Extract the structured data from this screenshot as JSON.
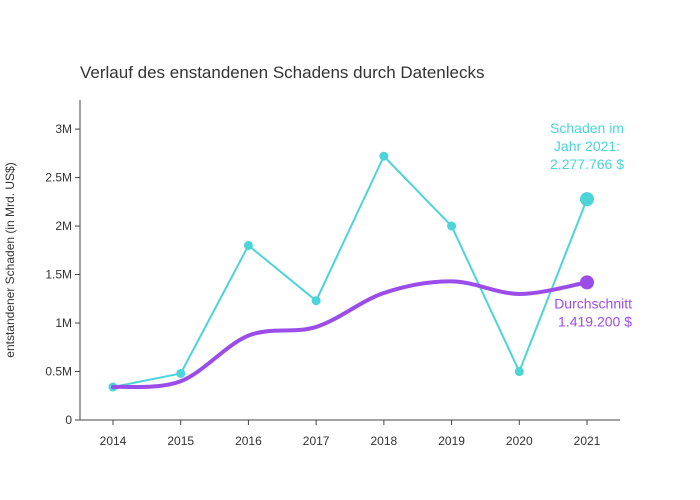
{
  "chart_data": {
    "type": "line",
    "title": "Verlauf des enstandenen Schadens durch Datenlecks",
    "xlabel": "",
    "ylabel": "entstandener Schaden (in Mrd. US$)",
    "x": [
      "2014",
      "2015",
      "2016",
      "2017",
      "2018",
      "2019",
      "2020",
      "2021"
    ],
    "ylim": [
      0,
      3300000
    ],
    "yticks": [
      0,
      500000,
      1000000,
      1500000,
      2000000,
      2500000,
      3000000
    ],
    "ytick_labels": [
      "0",
      "0.5M",
      "1M",
      "1.5M",
      "2M",
      "2.5M",
      "3M"
    ],
    "grid": false,
    "legend": "none",
    "series": [
      {
        "color": "#4dd4d8",
        "values": [
          340000,
          480000,
          1800000,
          1230000,
          2720000,
          2000000,
          500000,
          2277766
        ]
      },
      {
        "color": "#9b4dea",
        "values": [
          340000,
          400000,
          870000,
          960000,
          1310000,
          1430000,
          1300000,
          1419200
        ]
      }
    ],
    "annotations": [
      {
        "series": 0,
        "lines": [
          "Schaden im",
          "Jahr 2021:",
          "2.277.766 $"
        ],
        "color": "#4dd4d8"
      },
      {
        "series": 1,
        "lines": [
          "Durchschnitt",
          "1.419.200 $"
        ],
        "color": "#9b4dea"
      }
    ]
  }
}
